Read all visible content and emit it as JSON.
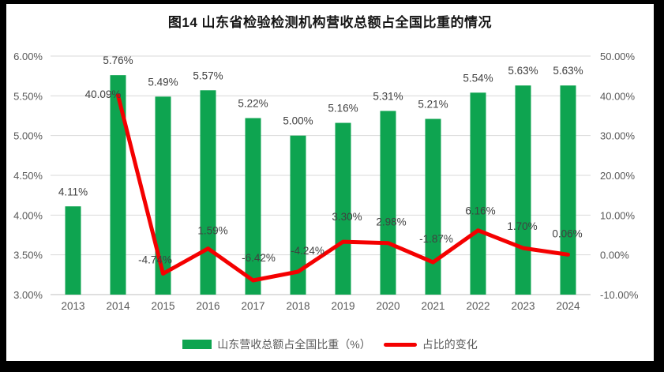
{
  "chart_data": {
    "type": "combo-bar-line",
    "title": "图14  山东省检验检测机构营收总额占全国比重的情况",
    "categories": [
      "2013",
      "2014",
      "2015",
      "2016",
      "2017",
      "2018",
      "2019",
      "2020",
      "2021",
      "2022",
      "2023",
      "2024"
    ],
    "series": [
      {
        "name": "山东营收总额占全国比重（%）",
        "type": "bar",
        "axis": "left",
        "color": "#0EA450",
        "values": [
          4.11,
          5.76,
          5.49,
          5.57,
          5.22,
          5.0,
          5.16,
          5.31,
          5.21,
          5.54,
          5.63,
          5.63
        ],
        "labels": [
          "4.11%",
          "5.76%",
          "5.49%",
          "5.57%",
          "5.22%",
          "5.00%",
          "5.16%",
          "5.31%",
          "5.21%",
          "5.54%",
          "5.63%",
          "5.63%"
        ]
      },
      {
        "name": "占比的变化",
        "type": "line",
        "axis": "right",
        "color": "#F40000",
        "values": [
          null,
          40.09,
          -4.74,
          1.59,
          -6.42,
          -4.24,
          3.3,
          2.98,
          -1.87,
          6.16,
          1.7,
          0.06
        ],
        "labels": [
          null,
          "40.09%",
          "-4.74%",
          "1.59%",
          "-6.42%",
          "-4.24%",
          "3.30%",
          "2.98%",
          "-1.87%",
          "6.16%",
          "1.70%",
          "0.06%"
        ]
      }
    ],
    "left_axis": {
      "min": 3,
      "max": 6,
      "step": 0.5,
      "ticks": [
        "6.00%",
        "5.50%",
        "5.00%",
        "4.50%",
        "4.00%",
        "3.50%",
        "3.00%"
      ]
    },
    "right_axis": {
      "min": -10,
      "max": 50,
      "step": 10,
      "ticks": [
        "50.00%",
        "40.00%",
        "30.00%",
        "20.00%",
        "10.00%",
        "0.00%",
        "-10.00%"
      ]
    },
    "grid": true,
    "legend_position": "bottom",
    "colors": {
      "gridline": "#D9D9D9",
      "axis_line": "#BFBFBF",
      "axis_text": "#595959",
      "label_text": "#404040"
    }
  }
}
